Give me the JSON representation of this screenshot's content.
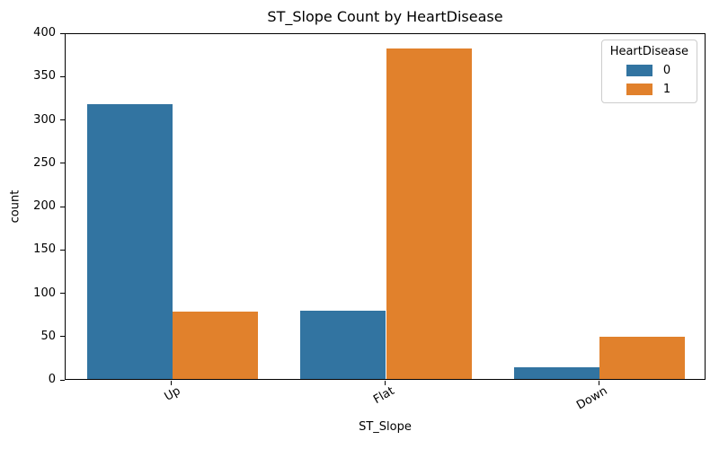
{
  "figure": {
    "background": "#ffffff",
    "spine_color": "#000000",
    "text_color": "#000000"
  },
  "chart_data": {
    "type": "bar",
    "title": "ST_Slope Count by HeartDisease",
    "xlabel": "ST_Slope",
    "ylabel": "count",
    "categories": [
      "Up",
      "Flat",
      "Down"
    ],
    "series": [
      {
        "name": "0",
        "color": "#3274a1",
        "values": [
          317,
          79,
          14
        ]
      },
      {
        "name": "1",
        "color": "#e1812c",
        "values": [
          78,
          381,
          49
        ]
      }
    ],
    "ylim": [
      0,
      400
    ],
    "yticks": [
      0,
      50,
      100,
      150,
      200,
      250,
      300,
      350,
      400
    ],
    "xtick_rotation_deg": 30,
    "grid": false,
    "legend": {
      "title": "HeartDisease",
      "position": "upper right",
      "labels": [
        "0",
        "1"
      ]
    }
  }
}
